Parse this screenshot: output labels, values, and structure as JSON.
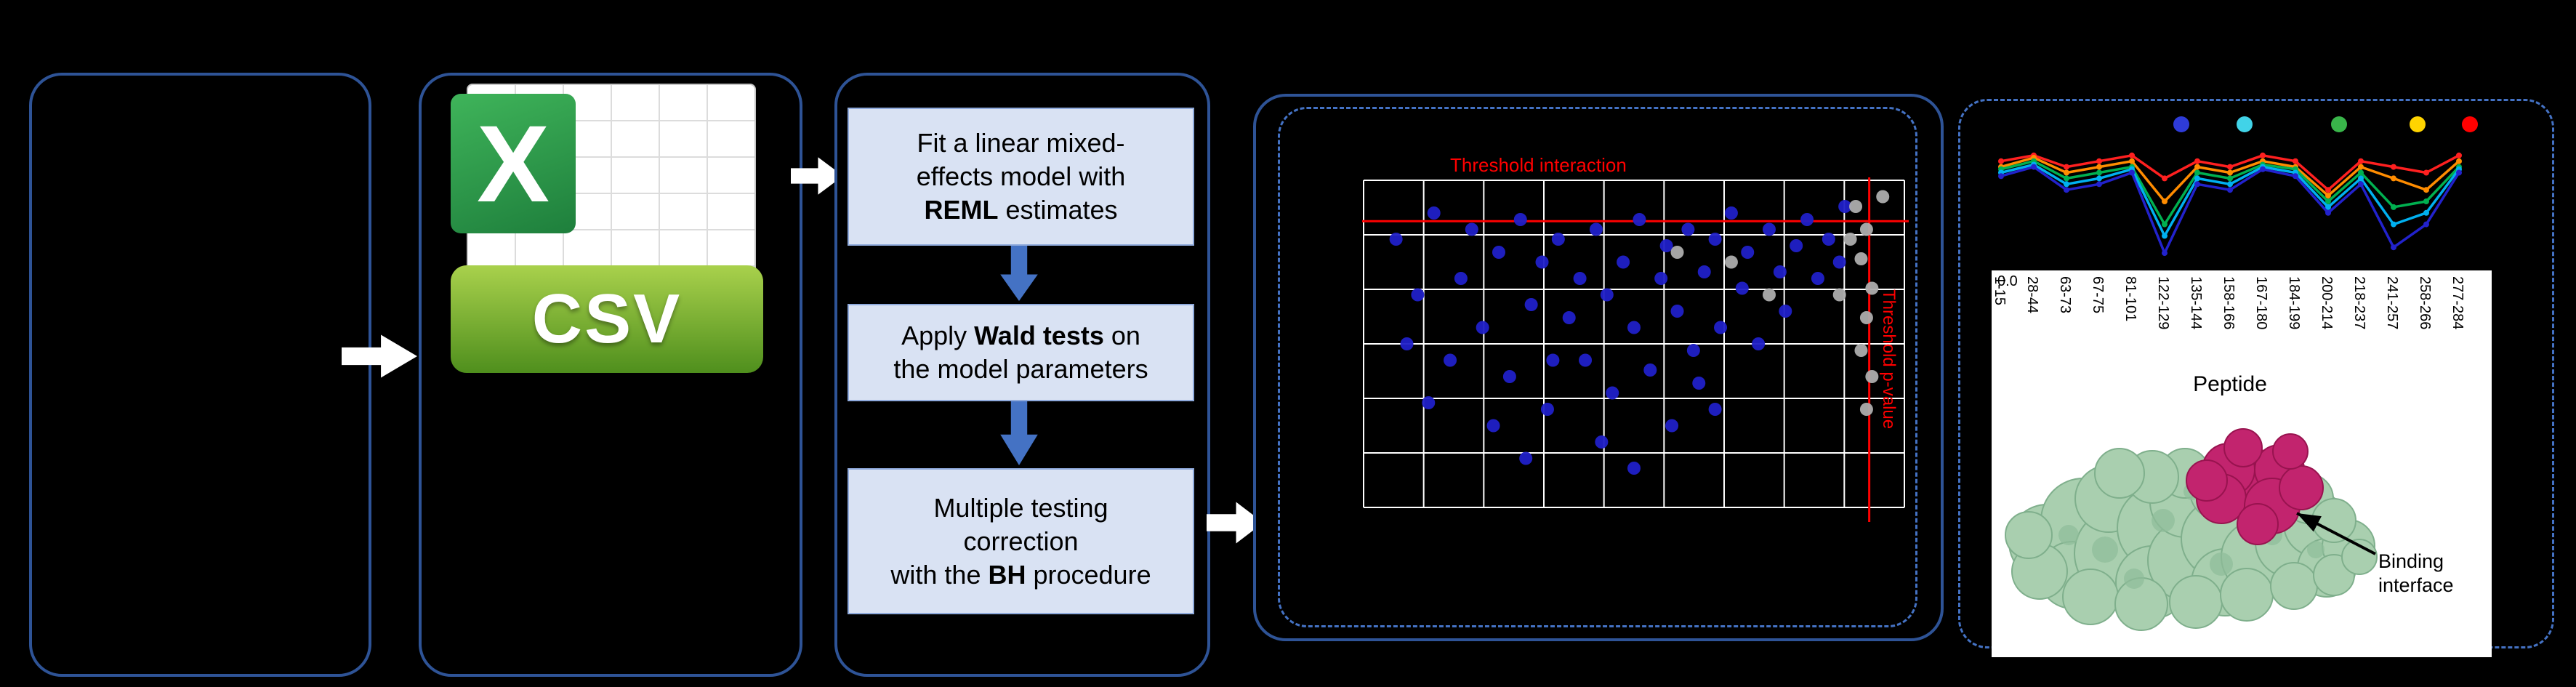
{
  "colors": {
    "background": "#000000",
    "panel_border": "#2E5396",
    "dashed_border": "#4472C4",
    "process_fill": "#D9E2F3",
    "process_border": "#8FAADC",
    "threshold_red": "#FF0000",
    "grid_white": "#FFFFFF",
    "blue_point": "#2020C8",
    "grey_point": "#ADADAD"
  },
  "icons": {
    "csv-file-icon": "spreadsheet file icon (green X logo, grid sheet, CSV banner)",
    "flow-arrow-icon": "white block arrow pointing right",
    "down-arrow-icon": "blue block arrow pointing down"
  },
  "csv_icon": {
    "banner_label": "CSV",
    "logo_letter": "X"
  },
  "pipeline": {
    "steps": [
      {
        "lines": [
          [
            {
              "t": "Fit a linear mixed-"
            }
          ],
          [
            {
              "t": "effects model with"
            }
          ],
          [
            {
              "t": "REML",
              "b": true
            },
            {
              "t": " estimates"
            }
          ]
        ]
      },
      {
        "lines": [
          [
            {
              "t": "Apply "
            },
            {
              "t": "Wald tests",
              "b": true
            },
            {
              "t": " on"
            }
          ],
          [
            {
              "t": "the model parameters"
            }
          ]
        ]
      },
      {
        "lines": [
          [
            {
              "t": "Multiple testing"
            }
          ],
          [
            {
              "t": "correction"
            }
          ],
          [
            {
              "t": "with the "
            },
            {
              "t": "BH",
              "b": true
            },
            {
              "t": " procedure"
            }
          ]
        ]
      }
    ]
  },
  "volcano_labels": {
    "interaction": "Threshold interaction",
    "pvalue": "Threshold p-value"
  },
  "profile_labels": {
    "xlabel": "Peptide",
    "y_zero": "0.0"
  },
  "protein": {
    "annotation": "Binding interface"
  },
  "chart_data": [
    {
      "type": "scatter",
      "title": "",
      "x_range": [
        0,
        1
      ],
      "y_range": [
        0,
        1
      ],
      "y_axis_direction": "down",
      "grid": {
        "cols": 9,
        "rows": 6,
        "color": "#FFFFFF",
        "on": true
      },
      "threshold_color": "#FF0000",
      "thresholds": {
        "h_y": 0.125,
        "v_x": 0.935,
        "h_label": "Threshold interaction",
        "v_label": "Threshold p-value"
      },
      "series": [
        {
          "name": "blue-points",
          "color": "#2020C8",
          "points": [
            [
              0.06,
              0.18
            ],
            [
              0.1,
              0.35
            ],
            [
              0.13,
              0.1
            ],
            [
              0.16,
              0.55
            ],
            [
              0.18,
              0.3
            ],
            [
              0.2,
              0.15
            ],
            [
              0.22,
              0.45
            ],
            [
              0.25,
              0.22
            ],
            [
              0.27,
              0.6
            ],
            [
              0.29,
              0.12
            ],
            [
              0.31,
              0.38
            ],
            [
              0.33,
              0.25
            ],
            [
              0.34,
              0.7
            ],
            [
              0.36,
              0.18
            ],
            [
              0.38,
              0.42
            ],
            [
              0.4,
              0.3
            ],
            [
              0.41,
              0.55
            ],
            [
              0.43,
              0.15
            ],
            [
              0.45,
              0.35
            ],
            [
              0.46,
              0.65
            ],
            [
              0.48,
              0.25
            ],
            [
              0.5,
              0.45
            ],
            [
              0.51,
              0.12
            ],
            [
              0.53,
              0.58
            ],
            [
              0.55,
              0.3
            ],
            [
              0.56,
              0.2
            ],
            [
              0.58,
              0.4
            ],
            [
              0.6,
              0.15
            ],
            [
              0.61,
              0.52
            ],
            [
              0.63,
              0.28
            ],
            [
              0.65,
              0.18
            ],
            [
              0.66,
              0.45
            ],
            [
              0.68,
              0.1
            ],
            [
              0.7,
              0.33
            ],
            [
              0.71,
              0.22
            ],
            [
              0.73,
              0.5
            ],
            [
              0.75,
              0.15
            ],
            [
              0.77,
              0.28
            ],
            [
              0.78,
              0.4
            ],
            [
              0.8,
              0.2
            ],
            [
              0.82,
              0.12
            ],
            [
              0.84,
              0.3
            ],
            [
              0.86,
              0.18
            ],
            [
              0.44,
              0.8
            ],
            [
              0.3,
              0.85
            ],
            [
              0.57,
              0.75
            ],
            [
              0.24,
              0.75
            ],
            [
              0.12,
              0.68
            ],
            [
              0.5,
              0.88
            ],
            [
              0.65,
              0.7
            ],
            [
              0.35,
              0.55
            ],
            [
              0.62,
              0.62
            ],
            [
              0.08,
              0.5
            ],
            [
              0.88,
              0.25
            ],
            [
              0.89,
              0.08
            ]
          ]
        },
        {
          "name": "grey-points",
          "color": "#ADADAD",
          "points": [
            [
              0.91,
              0.08
            ],
            [
              0.93,
              0.15
            ],
            [
              0.92,
              0.24
            ],
            [
              0.94,
              0.33
            ],
            [
              0.93,
              0.42
            ],
            [
              0.92,
              0.52
            ],
            [
              0.94,
              0.6
            ],
            [
              0.93,
              0.7
            ],
            [
              0.9,
              0.18
            ],
            [
              0.88,
              0.35
            ],
            [
              0.68,
              0.25
            ],
            [
              0.58,
              0.22
            ],
            [
              0.75,
              0.35
            ],
            [
              0.96,
              0.05
            ]
          ]
        }
      ]
    },
    {
      "type": "line",
      "title": "",
      "xlabel": "Peptide",
      "ylim": [
        0,
        1
      ],
      "y_tick_labels": [
        "0.0"
      ],
      "categories": [
        "1-15",
        "28-44",
        "63-73",
        "67-75",
        "81-101",
        "122-129",
        "135-144",
        "158-166",
        "167-180",
        "184-199",
        "200-214",
        "218-237",
        "241-257",
        "258-266",
        "277-284"
      ],
      "legend_dot_colors": [
        "#2E3BD8",
        "#41D3E8",
        "#39B54A",
        "#FFD400",
        "#FF0000"
      ],
      "series": [
        {
          "name": "red-line",
          "color": "#FF2020",
          "values": [
            0.85,
            0.9,
            0.8,
            0.85,
            0.9,
            0.7,
            0.85,
            0.8,
            0.9,
            0.85,
            0.6,
            0.85,
            0.8,
            0.75,
            0.9
          ]
        },
        {
          "name": "orange-line",
          "color": "#FF8C00",
          "values": [
            0.8,
            0.88,
            0.75,
            0.8,
            0.85,
            0.5,
            0.8,
            0.75,
            0.85,
            0.8,
            0.55,
            0.8,
            0.7,
            0.6,
            0.85
          ]
        },
        {
          "name": "green-line",
          "color": "#00B050",
          "values": [
            0.78,
            0.85,
            0.7,
            0.75,
            0.8,
            0.3,
            0.75,
            0.7,
            0.82,
            0.78,
            0.5,
            0.75,
            0.45,
            0.5,
            0.8
          ]
        },
        {
          "name": "cyan-line",
          "color": "#00B0F0",
          "values": [
            0.75,
            0.82,
            0.65,
            0.7,
            0.78,
            0.2,
            0.7,
            0.65,
            0.8,
            0.75,
            0.45,
            0.7,
            0.3,
            0.4,
            0.78
          ]
        },
        {
          "name": "blue-line",
          "color": "#2222CC",
          "values": [
            0.72,
            0.8,
            0.6,
            0.65,
            0.75,
            0.05,
            0.65,
            0.6,
            0.78,
            0.72,
            0.4,
            0.65,
            0.1,
            0.3,
            0.75
          ]
        }
      ]
    }
  ]
}
